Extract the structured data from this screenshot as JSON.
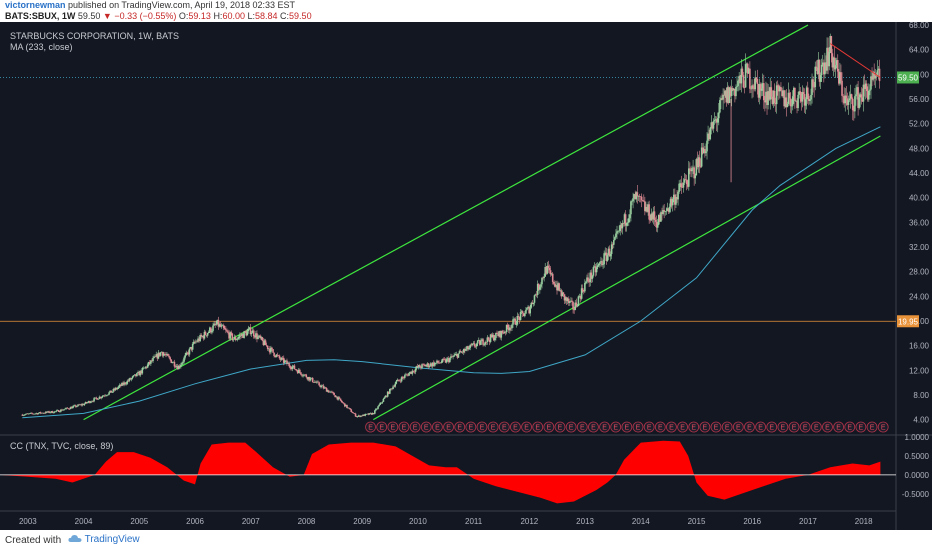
{
  "header": {
    "author": "victornewman",
    "published_text": "published on TradingView.com, April 19, 2018 02:33 EST",
    "symbol": "BATS:SBUX, 1W",
    "last": "59.50",
    "change": "▼ −0.33 (−0.55%)",
    "open_label": "O:",
    "open": "59.13",
    "high_label": "H:",
    "high": "60.00",
    "low_label": "L:",
    "low": "58.84",
    "close_label": "C:",
    "close": "59.50"
  },
  "main_panel": {
    "title": "STARBUCKS CORPORATION, 1W, BATS",
    "ma_label": "MA (233, close)",
    "price_tag": "59.50",
    "level_tag": "19.95",
    "earnings_marker": "E",
    "earnings_count": 47
  },
  "indicator_panel": {
    "title": "CC (TNX, TVC, close, 89)"
  },
  "footer": {
    "created_with": "Created with",
    "brand": "TradingView"
  },
  "colors": {
    "background": "#131722",
    "candle_up": "#9ad0a0",
    "candle_down": "#e08b94",
    "channel": "#3ee63e",
    "ma": "#3fa7c7",
    "level_line": "#e8923a",
    "price_line": "#3fa7c7",
    "trendline": "#e53935",
    "cc_fill": "#ff0000",
    "price_tag": "#4caf50"
  },
  "chart_data": [
    {
      "type": "line",
      "series": [
        {
          "name": "BATS:SBUX, 1W",
          "x": [
            2002.9,
            2003.5,
            2004.0,
            2004.5,
            2005.0,
            2005.4,
            2005.7,
            2006.0,
            2006.4,
            2006.7,
            2007.0,
            2007.5,
            2008.0,
            2008.5,
            2008.9,
            2009.2,
            2009.6,
            2010.0,
            2010.5,
            2011.0,
            2011.5,
            2012.0,
            2012.3,
            2012.6,
            2012.8,
            2013.0,
            2013.5,
            2013.9,
            2014.3,
            2014.6,
            2015.0,
            2015.5,
            2015.9,
            2016.2,
            2016.6,
            2017.0,
            2017.4,
            2017.7,
            2018.0,
            2018.3
          ],
          "y": [
            4.8,
            5.3,
            6.5,
            8.5,
            11.5,
            15.0,
            12.5,
            16.5,
            19.5,
            17.0,
            18.5,
            14.0,
            11.0,
            8.0,
            4.5,
            5.0,
            10.0,
            12.5,
            13.5,
            16.0,
            18.0,
            22.0,
            28.5,
            24.0,
            22.0,
            26.0,
            32.0,
            40.0,
            36.0,
            40.0,
            45.0,
            56.0,
            60.0,
            57.0,
            56.0,
            57.0,
            64.0,
            55.0,
            57.0,
            59.5
          ]
        },
        {
          "name": "MA (233, close)",
          "x": [
            2002.9,
            2004.0,
            2005.0,
            2006.0,
            2007.0,
            2008.0,
            2008.5,
            2009.0,
            2010.0,
            2011.0,
            2011.5,
            2012.0,
            2013.0,
            2014.0,
            2015.0,
            2016.0,
            2016.5,
            2017.0,
            2017.5,
            2018.3
          ],
          "y": [
            4.3,
            5.0,
            7.0,
            9.8,
            12.2,
            13.6,
            13.7,
            13.4,
            12.4,
            11.6,
            11.5,
            11.8,
            14.5,
            20.0,
            27.0,
            38.0,
            42.0,
            45.0,
            48.0,
            51.5
          ]
        }
      ],
      "hlines": [
        19.95,
        59.5
      ],
      "channel_lines": [
        {
          "x": [
            2004.0,
            2017.0
          ],
          "y": [
            4.0,
            68.0
          ]
        },
        {
          "x": [
            2009.2,
            2018.3
          ],
          "y": [
            4.0,
            50.0
          ]
        }
      ],
      "trendline": {
        "x": [
          2017.4,
          2018.3
        ],
        "y": [
          65.0,
          59.5
        ]
      },
      "earnings_markers": {
        "start": 2009.15,
        "end": 2018.35,
        "count": 47
      },
      "yticks": [
        "4.00",
        "8.00",
        "12.00",
        "16.00",
        "20.00",
        "24.00",
        "28.00",
        "32.00",
        "36.00",
        "40.00",
        "44.00",
        "48.00",
        "52.00",
        "56.00",
        "60.00",
        "64.00",
        "68.00"
      ],
      "ylim": [
        1.5,
        68.5
      ],
      "xlim": [
        2002.5,
        2018.58
      ],
      "xticks": [
        "2003",
        "2004",
        "2005",
        "2006",
        "2007",
        "2008",
        "2009",
        "2010",
        "2011",
        "2012",
        "2013",
        "2014",
        "2015",
        "2016",
        "2017",
        "2018"
      ],
      "grid": false
    },
    {
      "type": "area",
      "series": [
        {
          "name": "CC (TNX, TVC, close, 89)",
          "x": [
            2002.5,
            2003.0,
            2003.5,
            2003.8,
            2004.2,
            2004.4,
            2004.6,
            2004.9,
            2005.2,
            2005.5,
            2005.8,
            2006.0,
            2006.1,
            2006.3,
            2006.6,
            2006.9,
            2007.1,
            2007.4,
            2007.7,
            2007.95,
            2008.1,
            2008.4,
            2008.8,
            2009.2,
            2009.6,
            2009.9,
            2010.2,
            2010.5,
            2010.7,
            2010.9,
            2011.0,
            2011.4,
            2011.8,
            2012.2,
            2012.5,
            2012.8,
            2013.0,
            2013.2,
            2013.4,
            2013.55,
            2013.7,
            2014.0,
            2014.4,
            2014.7,
            2014.85,
            2015.0,
            2015.2,
            2015.5,
            2015.8,
            2016.2,
            2016.6,
            2017.0,
            2017.4,
            2017.8,
            2018.1,
            2018.3
          ],
          "y": [
            0.0,
            -0.05,
            -0.1,
            -0.2,
            0.0,
            0.35,
            0.6,
            0.6,
            0.45,
            0.2,
            -0.15,
            -0.25,
            0.3,
            0.8,
            0.85,
            0.85,
            0.6,
            0.2,
            -0.05,
            0.0,
            0.55,
            0.8,
            0.85,
            0.85,
            0.75,
            0.5,
            0.25,
            0.2,
            0.2,
            0.0,
            -0.1,
            -0.3,
            -0.45,
            -0.6,
            -0.75,
            -0.7,
            -0.55,
            -0.4,
            -0.2,
            0.0,
            0.4,
            0.85,
            0.9,
            0.88,
            0.5,
            -0.2,
            -0.55,
            -0.65,
            -0.5,
            -0.3,
            -0.1,
            0.0,
            0.2,
            0.3,
            0.25,
            0.35
          ]
        }
      ],
      "yticks": [
        "1.0000",
        "0.5000",
        "0.0000",
        "-0.5000"
      ],
      "ylim": [
        -0.95,
        1.05
      ],
      "grid": false
    }
  ]
}
